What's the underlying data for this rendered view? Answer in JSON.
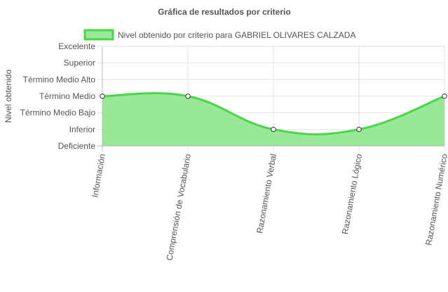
{
  "chart_data": {
    "type": "area",
    "title": "Gráfica de resultados por criterio",
    "ylabel": "Nivel obtenido",
    "xlabel": "",
    "categories": [
      "Información",
      "Comprensión de Vocabulario",
      "Razonamiento Verbal",
      "Razonamiento Lógico",
      "Razonamiento Numérico"
    ],
    "y_levels": [
      "Deficiente",
      "Inferior",
      "Término Medio Bajo",
      "Término Medio",
      "Término Medio Alto",
      "Superior",
      "Excelente"
    ],
    "ylim": [
      0,
      6
    ],
    "series": [
      {
        "name": "Nivel obtenido por criterio para GABRIEL OLIVARES CALZADA",
        "values": [
          3,
          3,
          1,
          1,
          3
        ],
        "value_labels": [
          "Término Medio",
          "Término Medio",
          "Inferior",
          "Inferior",
          "Término Medio"
        ],
        "line_color": "#4cd44c",
        "fill_color": "#98e898",
        "point_fill": "#ffffff",
        "point_stroke": "#333333"
      }
    ],
    "grid": true,
    "legend_position": "top",
    "smooth": true
  }
}
